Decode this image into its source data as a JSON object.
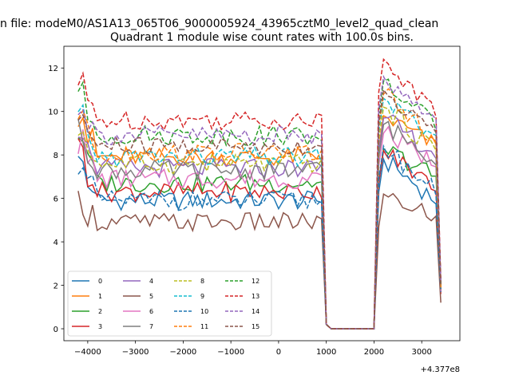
{
  "window_title": "n file: modeM0/AS1A13_065T06_9000005924_43965cztM0_level2_quad_clean",
  "chart_data": {
    "type": "line",
    "title": "Quadrant 1 module wise count rates with 100.0s bins.",
    "xlabel": "",
    "ylabel": "",
    "x_offset_label": "+4.377e8",
    "xlim": [
      -4500,
      3800
    ],
    "ylim": [
      -0.55,
      13
    ],
    "xticks": [
      -4000,
      -3000,
      -2000,
      -1000,
      0,
      1000,
      2000,
      3000
    ],
    "xtick_labels": [
      "−4000",
      "−3000",
      "−2000",
      "−1000",
      "0",
      "1000",
      "2000",
      "3000"
    ],
    "yticks": [
      0,
      2,
      4,
      6,
      8,
      10,
      12
    ],
    "ytick_labels": [
      "0",
      "2",
      "4",
      "6",
      "8",
      "10",
      "12"
    ],
    "grid": false,
    "legend_location": "lower-left",
    "legend_columns": 4,
    "x_range": [
      -4200,
      3400
    ],
    "bin_width": 100,
    "series": [
      {
        "name": "0",
        "color": "#1f77b4",
        "dash": "solid",
        "start": 7.6,
        "level": 5.9,
        "peak": 7.8,
        "end_level": 5.9,
        "tail": 1.7
      },
      {
        "name": "1",
        "color": "#ff7f0e",
        "dash": "solid",
        "start": 9.9,
        "level": 7.9,
        "peak": 9.8,
        "end_level": 8.4,
        "tail": 1.8
      },
      {
        "name": "2",
        "color": "#2ca02c",
        "dash": "solid",
        "start": 8.9,
        "level": 6.7,
        "peak": 8.3,
        "end_level": 7.0,
        "tail": 1.9
      },
      {
        "name": "3",
        "color": "#d62728",
        "dash": "solid",
        "start": 8.3,
        "level": 6.3,
        "peak": 8.2,
        "end_level": 6.5,
        "tail": 1.6
      },
      {
        "name": "4",
        "color": "#9467bd",
        "dash": "solid",
        "start": 9.3,
        "level": 7.4,
        "peak": 9.7,
        "end_level": 8.0,
        "tail": 1.9
      },
      {
        "name": "5",
        "color": "#8c564b",
        "dash": "solid",
        "start": 5.9,
        "level": 4.9,
        "peak": 6.2,
        "end_level": 5.1,
        "tail": 1.2
      },
      {
        "name": "6",
        "color": "#e377c2",
        "dash": "solid",
        "start": 8.6,
        "level": 6.9,
        "peak": 9.0,
        "end_level": 7.6,
        "tail": 1.7
      },
      {
        "name": "7",
        "color": "#7f7f7f",
        "dash": "solid",
        "start": 9.0,
        "level": 7.3,
        "peak": 9.4,
        "end_level": 7.8,
        "tail": 1.8
      },
      {
        "name": "8",
        "color": "#bcbd22",
        "dash": "dashed",
        "start": 9.2,
        "level": 7.6,
        "peak": 10.2,
        "end_level": 8.2,
        "tail": 1.9
      },
      {
        "name": "9",
        "color": "#17becf",
        "dash": "dashed",
        "start": 9.6,
        "level": 7.9,
        "peak": 10.6,
        "end_level": 8.6,
        "tail": 2.0
      },
      {
        "name": "10",
        "color": "#1f77b4",
        "dash": "dashed",
        "start": 7.8,
        "level": 5.9,
        "peak": 8.4,
        "end_level": 6.3,
        "tail": 1.7
      },
      {
        "name": "11",
        "color": "#ff7f0e",
        "dash": "dashed",
        "start": 10.0,
        "level": 8.1,
        "peak": 10.8,
        "end_level": 8.7,
        "tail": 1.9
      },
      {
        "name": "12",
        "color": "#2ca02c",
        "dash": "dashed",
        "start": 10.7,
        "level": 8.9,
        "peak": 11.4,
        "end_level": 9.3,
        "tail": 2.1
      },
      {
        "name": "13",
        "color": "#d62728",
        "dash": "dashed",
        "start": 11.2,
        "level": 9.6,
        "peak": 12.4,
        "end_level": 9.9,
        "tail": 2.3
      },
      {
        "name": "14",
        "color": "#9467bd",
        "dash": "dashed",
        "start": 10.4,
        "level": 8.9,
        "peak": 11.6,
        "end_level": 9.4,
        "tail": 2.1
      },
      {
        "name": "15",
        "color": "#8c564b",
        "dash": "dashed",
        "start": 9.8,
        "level": 8.4,
        "peak": 11.0,
        "end_level": 8.9,
        "tail": 2.0
      }
    ]
  }
}
